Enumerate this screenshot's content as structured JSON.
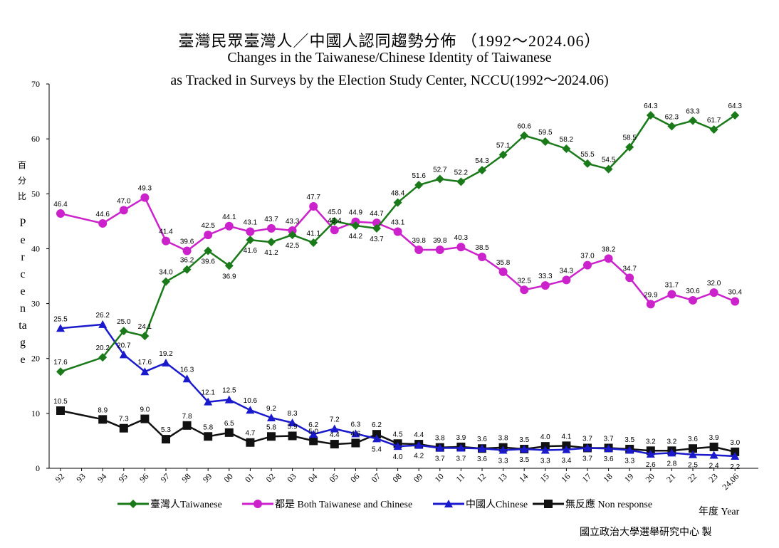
{
  "title_zh": "臺灣民眾臺灣人／中國人認同趨勢分佈 （1992～2024.06）",
  "title_en_1": "Changes in the Taiwanese/Chinese Identity of Taiwanese",
  "title_en_2": "as Tracked in Surveys by the Election Study Center, NCCU(1992～2024.06)",
  "ylabel_zh": "百分比",
  "ylabel_en": "Percentage",
  "xlabel": "年度 Year",
  "credit": "國立政治大學選舉研究中心 製",
  "chart_data": {
    "type": "line",
    "ylim": [
      0,
      70
    ],
    "yticks": [
      0,
      10,
      20,
      30,
      40,
      50,
      60,
      70
    ],
    "categories": [
      "92",
      "93",
      "94",
      "95",
      "96",
      "97",
      "98",
      "99",
      "00",
      "01",
      "02",
      "03",
      "04",
      "05",
      "06",
      "07",
      "08",
      "09",
      "10",
      "11",
      "12",
      "13",
      "14",
      "15",
      "16",
      "17",
      "18",
      "19",
      "20",
      "21",
      "22",
      "23",
      "24.06"
    ],
    "series": [
      {
        "name": "臺灣人Taiwanese",
        "color": "#1a7a1a",
        "marker": "diamond",
        "values": [
          17.6,
          null,
          20.2,
          25.0,
          24.1,
          34.0,
          36.2,
          39.6,
          36.9,
          41.6,
          41.2,
          42.5,
          41.1,
          45.0,
          44.2,
          43.7,
          48.4,
          51.6,
          52.7,
          52.2,
          54.3,
          57.1,
          60.6,
          59.5,
          58.2,
          55.5,
          54.5,
          58.5,
          64.3,
          62.3,
          63.3,
          61.7,
          64.3
        ]
      },
      {
        "name": "都是 Both Taiwanese and Chinese",
        "color": "#cc22cc",
        "marker": "circle",
        "values": [
          46.4,
          null,
          44.6,
          47.0,
          49.3,
          41.4,
          39.6,
          42.5,
          44.1,
          43.1,
          43.7,
          43.3,
          47.7,
          43.4,
          44.9,
          44.7,
          43.1,
          39.8,
          39.8,
          40.3,
          38.5,
          35.8,
          32.5,
          33.3,
          34.3,
          37.0,
          38.2,
          34.7,
          29.9,
          31.7,
          30.6,
          32.0,
          30.4
        ]
      },
      {
        "name": "中國人Chinese",
        "color": "#1a1acc",
        "marker": "triangle",
        "values": [
          25.5,
          null,
          26.2,
          20.7,
          17.6,
          19.2,
          16.3,
          12.1,
          12.5,
          10.6,
          9.2,
          8.3,
          6.2,
          7.2,
          6.3,
          5.4,
          4.0,
          4.2,
          3.7,
          3.7,
          3.6,
          3.3,
          3.5,
          3.3,
          3.4,
          3.7,
          3.6,
          3.3,
          2.6,
          2.8,
          2.5,
          2.4,
          2.2
        ]
      },
      {
        "name": "無反應 Non response",
        "color": "#111111",
        "marker": "square",
        "values": [
          10.5,
          null,
          8.9,
          7.3,
          9.0,
          5.3,
          7.8,
          5.8,
          6.5,
          4.7,
          5.8,
          5.9,
          5.0,
          4.4,
          4.6,
          6.2,
          4.5,
          4.4,
          3.8,
          3.9,
          3.6,
          3.8,
          3.5,
          4.0,
          4.1,
          3.7,
          3.7,
          3.5,
          3.2,
          3.2,
          3.6,
          3.9,
          3.0
        ]
      }
    ],
    "point_labels": {
      "taiwanese": [
        "17.6",
        "",
        "20.2",
        "25.0",
        "24.1",
        "34.0",
        "36.2",
        "39.6",
        "36.9",
        "41.6",
        "41.2",
        "42.5",
        "41.1",
        "45.0",
        "44.2",
        "43.7",
        "48.4",
        "51.6",
        "52.7",
        "52.2",
        "54.3",
        "57.1",
        "60.6",
        "59.5",
        "58.2",
        "55.5",
        "54.5",
        "58.5",
        "64.3",
        "62.3",
        "63.3",
        "61.7",
        "64.3"
      ],
      "both": [
        "46.4",
        "",
        "44.6",
        "47.0",
        "49.3",
        "41.4",
        "39.6",
        "42.5",
        "44.1",
        "43.1",
        "43.7",
        "43.3",
        "47.7",
        "43.4",
        "44.9",
        "44.7",
        "43.1",
        "39.8",
        "39.8",
        "40.3",
        "38.5",
        "35.8",
        "32.5",
        "33.3",
        "34.3",
        "37.0",
        "38.2",
        "34.7",
        "29.9",
        "31.7",
        "30.6",
        "32.0",
        "30.4"
      ],
      "chinese": [
        "25.5",
        "",
        "26.2",
        "20.7",
        "17.6",
        "19.2",
        "16.3",
        "12.1",
        "12.5",
        "10.6",
        "9.2",
        "8.3",
        "6.2",
        "7.2",
        "6.3",
        "5.4",
        "4.0",
        "4.2",
        "3.7",
        "3.7",
        "3.6",
        "3.3",
        "3.5",
        "3.3",
        "3.4",
        "3.7",
        "3.6",
        "3.3",
        "2.6",
        "2.8",
        "2.5",
        "2.4",
        "2.2"
      ],
      "nonresponse": [
        "10.5",
        "",
        "8.9",
        "7.3",
        "9.0",
        "5.3",
        "7.8",
        "5.8",
        "6.5",
        "4.7",
        "5.8",
        "5.9",
        "5.0",
        "4.4",
        "4.6",
        "6.2",
        "4.5",
        "4.4",
        "3.8",
        "3.9",
        "3.6",
        "3.8",
        "3.5",
        "4.0",
        "4.1",
        "3.7",
        "3.7",
        "3.5",
        "3.2",
        "3.2",
        "3.6",
        "3.9",
        "3.0"
      ]
    },
    "legend": [
      "臺灣人Taiwanese",
      "都是 Both Taiwanese and Chinese",
      "中國人Chinese",
      "無反應 Non response"
    ]
  }
}
